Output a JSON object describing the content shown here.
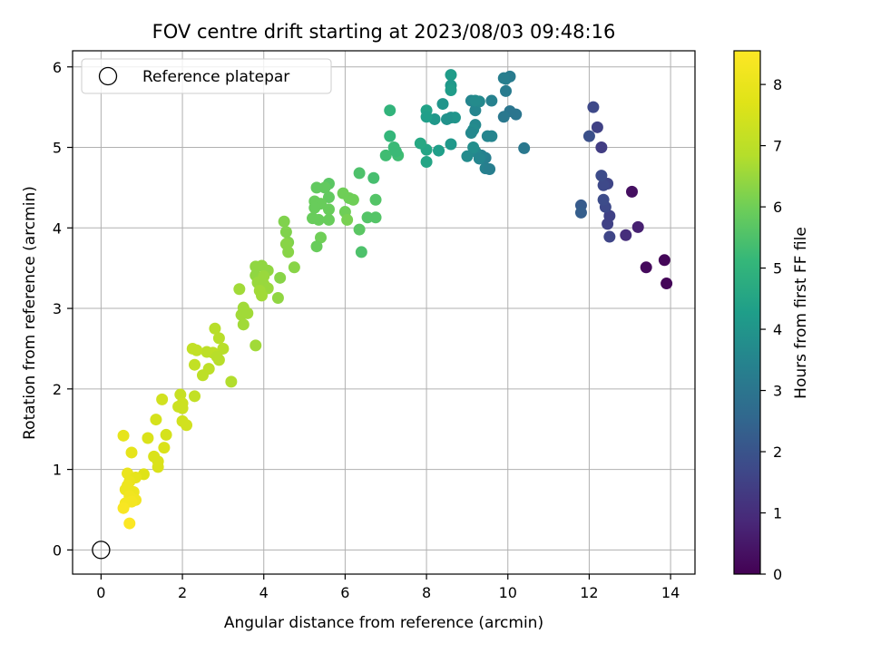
{
  "chart_data": {
    "type": "scatter",
    "title": "FOV centre drift starting at 2023/08/03 09:48:16",
    "xlabel": "Angular distance from reference (arcmin)",
    "ylabel": "Rotation from reference (arcmin)",
    "xlim": [
      -0.7,
      14.6
    ],
    "ylim": [
      -0.3,
      6.2
    ],
    "xticks": [
      0,
      2,
      4,
      6,
      8,
      10,
      12,
      14
    ],
    "yticks": [
      0,
      1,
      2,
      3,
      4,
      5,
      6
    ],
    "grid": true,
    "legend": {
      "position": "top-left",
      "entries": [
        "Reference platepar"
      ]
    },
    "reference_point": {
      "x": 0,
      "y": 0
    },
    "colorbar": {
      "label": "Hours from first FF file",
      "colormap": "viridis",
      "range": [
        0,
        8.55
      ],
      "ticks": [
        0,
        1,
        2,
        3,
        4,
        5,
        6,
        7,
        8
      ]
    },
    "points": [
      {
        "x": 13.85,
        "y": 3.6,
        "c": 0.1
      },
      {
        "x": 13.9,
        "y": 3.31,
        "c": 0.1
      },
      {
        "x": 13.4,
        "y": 3.51,
        "c": 0.2
      },
      {
        "x": 13.2,
        "y": 4.01,
        "c": 0.7
      },
      {
        "x": 12.9,
        "y": 3.91,
        "c": 1.0
      },
      {
        "x": 13.05,
        "y": 4.45,
        "c": 0.3
      },
      {
        "x": 12.45,
        "y": 4.05,
        "c": 1.5
      },
      {
        "x": 12.5,
        "y": 3.89,
        "c": 1.6
      },
      {
        "x": 12.5,
        "y": 4.15,
        "c": 1.5
      },
      {
        "x": 12.4,
        "y": 4.26,
        "c": 1.7
      },
      {
        "x": 12.35,
        "y": 4.35,
        "c": 1.8
      },
      {
        "x": 12.45,
        "y": 4.55,
        "c": 1.6
      },
      {
        "x": 12.35,
        "y": 4.53,
        "c": 1.7
      },
      {
        "x": 12.3,
        "y": 4.65,
        "c": 1.8
      },
      {
        "x": 12.3,
        "y": 5.0,
        "c": 1.4
      },
      {
        "x": 12.0,
        "y": 5.14,
        "c": 1.9
      },
      {
        "x": 12.2,
        "y": 5.25,
        "c": 1.5
      },
      {
        "x": 12.1,
        "y": 5.5,
        "c": 1.7
      },
      {
        "x": 11.8,
        "y": 4.28,
        "c": 2.2
      },
      {
        "x": 11.8,
        "y": 4.19,
        "c": 2.3
      },
      {
        "x": 10.4,
        "y": 4.99,
        "c": 3.1
      },
      {
        "x": 10.2,
        "y": 5.41,
        "c": 3.0
      },
      {
        "x": 10.05,
        "y": 5.45,
        "c": 3.0
      },
      {
        "x": 9.9,
        "y": 5.38,
        "c": 3.1
      },
      {
        "x": 9.95,
        "y": 5.7,
        "c": 3.2
      },
      {
        "x": 9.95,
        "y": 5.85,
        "c": 3.3
      },
      {
        "x": 10.05,
        "y": 5.88,
        "c": 3.2
      },
      {
        "x": 9.9,
        "y": 5.86,
        "c": 3.3
      },
      {
        "x": 9.6,
        "y": 5.58,
        "c": 3.4
      },
      {
        "x": 9.5,
        "y": 5.14,
        "c": 3.5
      },
      {
        "x": 9.6,
        "y": 5.14,
        "c": 3.5
      },
      {
        "x": 9.45,
        "y": 4.74,
        "c": 3.4
      },
      {
        "x": 9.55,
        "y": 4.73,
        "c": 3.3
      },
      {
        "x": 9.45,
        "y": 4.87,
        "c": 3.3
      },
      {
        "x": 9.35,
        "y": 4.9,
        "c": 3.4
      },
      {
        "x": 9.2,
        "y": 4.95,
        "c": 3.6
      },
      {
        "x": 9.15,
        "y": 5.0,
        "c": 3.8
      },
      {
        "x": 9.2,
        "y": 5.28,
        "c": 3.6
      },
      {
        "x": 9.15,
        "y": 5.22,
        "c": 3.7
      },
      {
        "x": 9.1,
        "y": 5.18,
        "c": 3.6
      },
      {
        "x": 9.2,
        "y": 5.46,
        "c": 3.5
      },
      {
        "x": 9.3,
        "y": 5.57,
        "c": 3.6
      },
      {
        "x": 9.1,
        "y": 5.58,
        "c": 3.5
      },
      {
        "x": 9.2,
        "y": 5.58,
        "c": 3.7
      },
      {
        "x": 9.0,
        "y": 4.89,
        "c": 3.7
      },
      {
        "x": 9.3,
        "y": 4.86,
        "c": 3.5
      },
      {
        "x": 8.6,
        "y": 5.9,
        "c": 4.2
      },
      {
        "x": 8.6,
        "y": 5.77,
        "c": 4.1
      },
      {
        "x": 8.6,
        "y": 5.71,
        "c": 4.2
      },
      {
        "x": 8.6,
        "y": 5.37,
        "c": 3.9
      },
      {
        "x": 8.7,
        "y": 5.37,
        "c": 4.0
      },
      {
        "x": 8.5,
        "y": 5.35,
        "c": 3.9
      },
      {
        "x": 8.4,
        "y": 5.54,
        "c": 4.0
      },
      {
        "x": 8.2,
        "y": 5.35,
        "c": 4.1
      },
      {
        "x": 8.0,
        "y": 5.46,
        "c": 4.4
      },
      {
        "x": 8.0,
        "y": 5.38,
        "c": 4.3
      },
      {
        "x": 8.6,
        "y": 5.04,
        "c": 4.1
      },
      {
        "x": 8.3,
        "y": 4.96,
        "c": 4.3
      },
      {
        "x": 8.0,
        "y": 4.97,
        "c": 4.5
      },
      {
        "x": 7.85,
        "y": 5.05,
        "c": 4.6
      },
      {
        "x": 8.0,
        "y": 4.82,
        "c": 4.5
      },
      {
        "x": 7.1,
        "y": 5.46,
        "c": 5.0
      },
      {
        "x": 7.1,
        "y": 5.14,
        "c": 5.1
      },
      {
        "x": 7.2,
        "y": 5.0,
        "c": 5.2
      },
      {
        "x": 7.3,
        "y": 4.9,
        "c": 5.3
      },
      {
        "x": 7.0,
        "y": 4.9,
        "c": 5.3
      },
      {
        "x": 7.25,
        "y": 4.95,
        "c": 5.2
      },
      {
        "x": 6.7,
        "y": 4.62,
        "c": 5.4
      },
      {
        "x": 6.35,
        "y": 4.68,
        "c": 5.5
      },
      {
        "x": 6.75,
        "y": 4.35,
        "c": 5.6
      },
      {
        "x": 6.75,
        "y": 4.13,
        "c": 5.6
      },
      {
        "x": 6.55,
        "y": 4.13,
        "c": 5.6
      },
      {
        "x": 6.35,
        "y": 3.98,
        "c": 5.7
      },
      {
        "x": 6.4,
        "y": 3.7,
        "c": 5.5
      },
      {
        "x": 5.6,
        "y": 4.55,
        "c": 5.7
      },
      {
        "x": 5.5,
        "y": 4.5,
        "c": 5.8
      },
      {
        "x": 5.3,
        "y": 4.5,
        "c": 5.8
      },
      {
        "x": 5.6,
        "y": 4.38,
        "c": 5.8
      },
      {
        "x": 5.25,
        "y": 4.33,
        "c": 5.9
      },
      {
        "x": 5.4,
        "y": 4.3,
        "c": 5.9
      },
      {
        "x": 5.25,
        "y": 4.25,
        "c": 5.9
      },
      {
        "x": 5.6,
        "y": 4.23,
        "c": 5.9
      },
      {
        "x": 5.2,
        "y": 4.12,
        "c": 5.9
      },
      {
        "x": 5.35,
        "y": 4.1,
        "c": 5.9
      },
      {
        "x": 5.6,
        "y": 4.1,
        "c": 5.9
      },
      {
        "x": 5.4,
        "y": 3.88,
        "c": 6.0
      },
      {
        "x": 5.3,
        "y": 3.77,
        "c": 5.9
      },
      {
        "x": 5.95,
        "y": 4.43,
        "c": 6.0
      },
      {
        "x": 6.1,
        "y": 4.37,
        "c": 6.0
      },
      {
        "x": 6.2,
        "y": 4.35,
        "c": 6.0
      },
      {
        "x": 6.0,
        "y": 4.2,
        "c": 6.0
      },
      {
        "x": 6.05,
        "y": 4.1,
        "c": 6.1
      },
      {
        "x": 4.5,
        "y": 4.08,
        "c": 6.2
      },
      {
        "x": 4.55,
        "y": 3.95,
        "c": 6.2
      },
      {
        "x": 4.6,
        "y": 3.82,
        "c": 6.2
      },
      {
        "x": 4.55,
        "y": 3.8,
        "c": 6.3
      },
      {
        "x": 4.6,
        "y": 3.7,
        "c": 6.3
      },
      {
        "x": 4.75,
        "y": 3.51,
        "c": 6.3
      },
      {
        "x": 4.4,
        "y": 3.38,
        "c": 6.3
      },
      {
        "x": 4.35,
        "y": 3.13,
        "c": 6.4
      },
      {
        "x": 3.8,
        "y": 3.52,
        "c": 6.4
      },
      {
        "x": 3.95,
        "y": 3.53,
        "c": 6.4
      },
      {
        "x": 4.1,
        "y": 3.47,
        "c": 6.4
      },
      {
        "x": 3.8,
        "y": 3.41,
        "c": 6.4
      },
      {
        "x": 4.0,
        "y": 3.4,
        "c": 6.5
      },
      {
        "x": 3.85,
        "y": 3.32,
        "c": 6.5
      },
      {
        "x": 4.0,
        "y": 3.3,
        "c": 6.5
      },
      {
        "x": 4.1,
        "y": 3.25,
        "c": 6.5
      },
      {
        "x": 3.9,
        "y": 3.22,
        "c": 6.6
      },
      {
        "x": 3.95,
        "y": 3.16,
        "c": 6.6
      },
      {
        "x": 3.4,
        "y": 3.24,
        "c": 6.6
      },
      {
        "x": 3.5,
        "y": 3.01,
        "c": 6.6
      },
      {
        "x": 3.55,
        "y": 2.96,
        "c": 6.6
      },
      {
        "x": 3.45,
        "y": 2.92,
        "c": 6.6
      },
      {
        "x": 3.6,
        "y": 2.94,
        "c": 6.6
      },
      {
        "x": 3.5,
        "y": 2.8,
        "c": 6.6
      },
      {
        "x": 3.8,
        "y": 2.54,
        "c": 6.6
      },
      {
        "x": 2.8,
        "y": 2.75,
        "c": 6.9
      },
      {
        "x": 2.9,
        "y": 2.63,
        "c": 6.9
      },
      {
        "x": 3.0,
        "y": 2.5,
        "c": 6.9
      },
      {
        "x": 2.75,
        "y": 2.45,
        "c": 7.0
      },
      {
        "x": 2.6,
        "y": 2.46,
        "c": 7.0
      },
      {
        "x": 2.25,
        "y": 2.5,
        "c": 7.1
      },
      {
        "x": 2.35,
        "y": 2.48,
        "c": 7.1
      },
      {
        "x": 2.9,
        "y": 2.36,
        "c": 6.9
      },
      {
        "x": 2.85,
        "y": 2.4,
        "c": 6.9
      },
      {
        "x": 2.3,
        "y": 2.3,
        "c": 7.1
      },
      {
        "x": 2.65,
        "y": 2.25,
        "c": 7.0
      },
      {
        "x": 2.5,
        "y": 2.17,
        "c": 7.0
      },
      {
        "x": 3.2,
        "y": 2.09,
        "c": 6.8
      },
      {
        "x": 2.3,
        "y": 1.91,
        "c": 7.1
      },
      {
        "x": 1.95,
        "y": 1.93,
        "c": 7.2
      },
      {
        "x": 2.0,
        "y": 1.82,
        "c": 7.3
      },
      {
        "x": 1.9,
        "y": 1.78,
        "c": 7.3
      },
      {
        "x": 2.0,
        "y": 1.76,
        "c": 7.3
      },
      {
        "x": 1.5,
        "y": 1.87,
        "c": 7.4
      },
      {
        "x": 2.0,
        "y": 1.6,
        "c": 7.4
      },
      {
        "x": 2.1,
        "y": 1.55,
        "c": 7.4
      },
      {
        "x": 1.35,
        "y": 1.62,
        "c": 7.5
      },
      {
        "x": 1.6,
        "y": 1.43,
        "c": 7.5
      },
      {
        "x": 1.15,
        "y": 1.39,
        "c": 7.6
      },
      {
        "x": 1.55,
        "y": 1.27,
        "c": 7.6
      },
      {
        "x": 1.3,
        "y": 1.16,
        "c": 7.6
      },
      {
        "x": 1.4,
        "y": 1.1,
        "c": 7.6
      },
      {
        "x": 1.4,
        "y": 1.03,
        "c": 7.6
      },
      {
        "x": 1.05,
        "y": 0.94,
        "c": 7.7
      },
      {
        "x": 0.55,
        "y": 1.42,
        "c": 7.9
      },
      {
        "x": 0.75,
        "y": 1.21,
        "c": 7.9
      },
      {
        "x": 0.65,
        "y": 0.95,
        "c": 8.0
      },
      {
        "x": 0.85,
        "y": 0.9,
        "c": 7.9
      },
      {
        "x": 0.7,
        "y": 0.85,
        "c": 8.0
      },
      {
        "x": 0.65,
        "y": 0.8,
        "c": 8.1
      },
      {
        "x": 0.6,
        "y": 0.75,
        "c": 8.1
      },
      {
        "x": 0.8,
        "y": 0.72,
        "c": 8.1
      },
      {
        "x": 0.7,
        "y": 0.67,
        "c": 8.2
      },
      {
        "x": 0.85,
        "y": 0.62,
        "c": 8.2
      },
      {
        "x": 0.75,
        "y": 0.6,
        "c": 8.3
      },
      {
        "x": 0.6,
        "y": 0.58,
        "c": 8.3
      },
      {
        "x": 0.55,
        "y": 0.52,
        "c": 8.4
      },
      {
        "x": 0.7,
        "y": 0.33,
        "c": 8.5
      }
    ]
  }
}
